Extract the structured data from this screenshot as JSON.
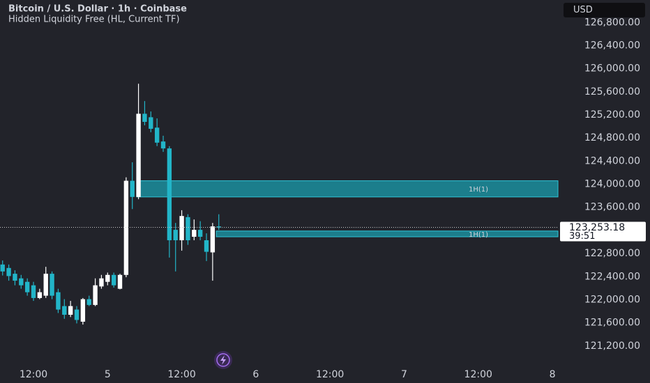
{
  "chart_data": {
    "type": "candlestick",
    "title": "Bitcoin / U.S. Dollar · 1h · Coinbase",
    "subtitle": "Hidden Liquidity Free (HL, Current TF)",
    "currency": "USD",
    "up_color": "#ffffff",
    "down_color": "#22b5c8",
    "x": [
      7,
      8,
      9,
      10,
      11,
      12,
      13,
      14,
      15,
      16,
      17,
      18,
      19,
      20,
      21,
      22,
      23,
      24,
      25,
      26,
      27,
      28,
      29,
      30,
      31,
      32,
      33,
      34,
      35,
      36,
      37,
      38,
      39,
      40,
      41,
      42
    ],
    "open": [
      122610,
      122550,
      122450,
      122370,
      122310,
      122250,
      122030,
      122070,
      122450,
      122130,
      121890,
      121740,
      121830,
      121620,
      122010,
      121910,
      122230,
      122310,
      122430,
      122190,
      122430,
      124060,
      123780,
      125220,
      125160,
      124980,
      124740,
      124620,
      123210,
      123030,
      123430,
      123090,
      123210,
      123030,
      122820,
      123270
    ],
    "high": [
      122680,
      122610,
      122510,
      122430,
      122370,
      122310,
      122190,
      122570,
      122490,
      122190,
      122010,
      121980,
      121890,
      122030,
      122070,
      122370,
      122430,
      122470,
      122470,
      122450,
      124120,
      124380,
      125740,
      125440,
      125260,
      125140,
      124840,
      124660,
      123330,
      123550,
      123480,
      123390,
      123360,
      123150,
      123330,
      123480
    ],
    "low": [
      122420,
      122330,
      122250,
      122190,
      122070,
      121980,
      122010,
      122030,
      122010,
      121770,
      121670,
      121700,
      121590,
      121570,
      121890,
      121890,
      122190,
      122250,
      122210,
      122180,
      122390,
      123570,
      123740,
      125020,
      124900,
      124660,
      124560,
      122730,
      122490,
      122850,
      122950,
      123030,
      123030,
      122670,
      122330,
      123210
    ],
    "close": [
      122490,
      122410,
      122330,
      122250,
      122130,
      122030,
      122130,
      122450,
      122070,
      121830,
      121740,
      121890,
      121650,
      122010,
      121910,
      122250,
      122370,
      122430,
      122250,
      122430,
      124060,
      123780,
      125220,
      125080,
      124960,
      124720,
      124620,
      123030,
      123030,
      123450,
      123030,
      123210,
      123090,
      122830,
      123270,
      123253.18
    ],
    "zones": [
      {
        "label": "1H(1)",
        "start": 28.7,
        "top": 124060,
        "bottom": 123780,
        "color": "#1b8e9e"
      },
      {
        "label": "1H(1)",
        "start": 41.6,
        "top": 123190,
        "bottom": 123090,
        "color": "#1b8e9e"
      }
    ],
    "last_price": {
      "value": 123253.18,
      "label": "123,253.18",
      "countdown": "39:51"
    },
    "xlim": [
      6.58,
      96.9
    ],
    "ylim": [
      120920,
      127190
    ],
    "xticks": [
      {
        "value": 12,
        "label": "12:00"
      },
      {
        "value": 24,
        "label": "5"
      },
      {
        "value": 36,
        "label": "12:00"
      },
      {
        "value": 48,
        "label": "6"
      },
      {
        "value": 60,
        "label": "12:00"
      },
      {
        "value": 72,
        "label": "7"
      },
      {
        "value": 84,
        "label": "12:00"
      },
      {
        "value": 96,
        "label": "8"
      }
    ],
    "yticks": [
      {
        "value": 121200,
        "label": "121,200.00"
      },
      {
        "value": 121600,
        "label": "121,600.00"
      },
      {
        "value": 122000,
        "label": "122,000.00"
      },
      {
        "value": 122400,
        "label": "122,400.00"
      },
      {
        "value": 122800,
        "label": "122,800.00"
      },
      {
        "value": 123600,
        "label": "123,600.00"
      },
      {
        "value": 124000,
        "label": "124,000.00"
      },
      {
        "value": 124400,
        "label": "124,400.00"
      },
      {
        "value": 124800,
        "label": "124,800.00"
      },
      {
        "value": 125200,
        "label": "125,200.00"
      },
      {
        "value": 125600,
        "label": "125,600.00"
      },
      {
        "value": 126000,
        "label": "126,000.00"
      },
      {
        "value": 126400,
        "label": "126,400.00"
      },
      {
        "value": 126800,
        "label": "126,800.00"
      }
    ]
  }
}
